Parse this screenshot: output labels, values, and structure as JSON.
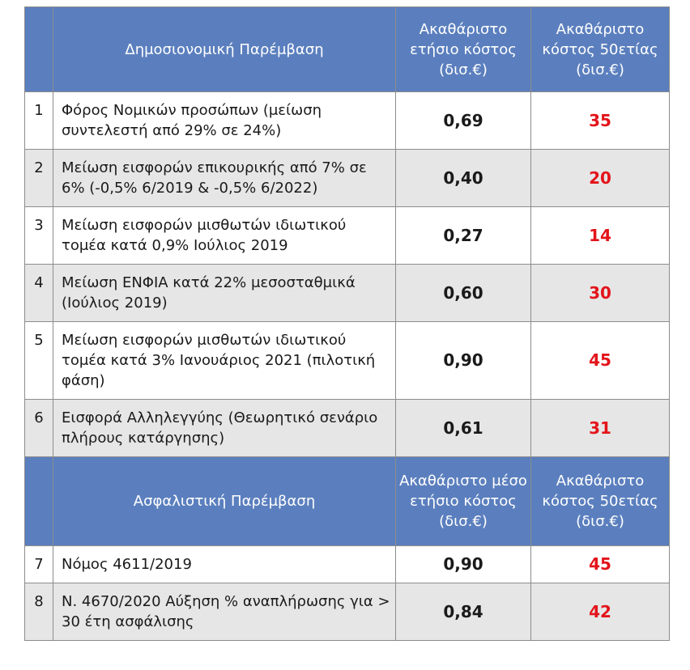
{
  "sections": [
    {
      "header": {
        "title": "Δημοσιονομική Παρέμβαση",
        "col_annual": "Ακαθάριστο ετήσιο κόστος (δισ.€)",
        "col_50y": "Ακαθάριστο κόστος 50ετίας (δισ.€)"
      },
      "rows": [
        {
          "num": "1",
          "description": "Φόρος Νομικών προσώπων (μείωση συντελεστή από 29% σε 24%)",
          "annual": "0,69",
          "cost_50y": "35"
        },
        {
          "num": "2",
          "description": "Μείωση εισφορών επικουρικής από 7% σε 6% (-0,5% 6/2019 & -0,5% 6/2022)",
          "annual": "0,40",
          "cost_50y": "20"
        },
        {
          "num": "3",
          "description": "Μείωση εισφορών μισθωτών ιδιωτικού τομέα κατά 0,9%  Ιούλιος 2019",
          "annual": "0,27",
          "cost_50y": "14"
        },
        {
          "num": "4",
          "description": "Μείωση ΕΝΦΙΑ κατά 22% μεσοσταθμικά (Ιούλιος 2019)",
          "annual": "0,60",
          "cost_50y": "30"
        },
        {
          "num": "5",
          "description": "Μείωση εισφορών μισθωτών ιδιωτικού τομέα κατά 3%  Ιανουάριος  2021 (πιλοτική φάση)",
          "annual": "0,90",
          "cost_50y": "45"
        },
        {
          "num": "6",
          "description": "Εισφορά Αλληλεγγύης (Θεωρητικό σενάριο πλήρους κατάργησης)",
          "annual": "0,61",
          "cost_50y": "31"
        }
      ]
    },
    {
      "header": {
        "title": "Ασφαλιστική Παρέμβαση",
        "col_annual": "Ακαθάριστο μέσο ετήσιο κόστος (δισ.€)",
        "col_50y": "Ακαθάριστο κόστος 50ετίας (δισ.€)"
      },
      "rows": [
        {
          "num": "7",
          "description": "Νόμος 4611/2019",
          "annual": "0,90",
          "cost_50y": "45"
        },
        {
          "num": "8",
          "description": "Ν. 4670/2020 Αύξηση % αναπλήρωσης για > 30 έτη ασφάλισης",
          "annual": "0,84",
          "cost_50y": "42"
        }
      ]
    }
  ]
}
